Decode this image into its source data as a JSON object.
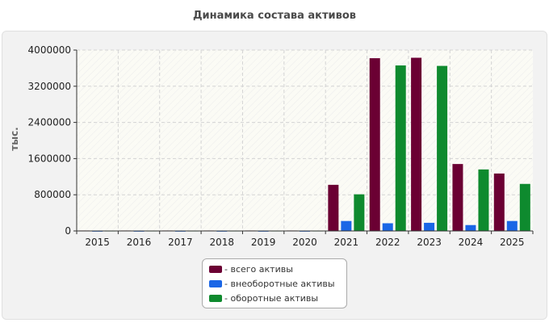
{
  "chart_data": {
    "type": "bar",
    "title": "Динамика состава активов",
    "ylabel": "тыс.",
    "xlabel": "",
    "categories": [
      "2015",
      "2016",
      "2017",
      "2018",
      "2019",
      "2020",
      "2021",
      "2022",
      "2023",
      "2024",
      "2025"
    ],
    "ylim": [
      0,
      4000000
    ],
    "yticks": [
      0,
      800000,
      1600000,
      2400000,
      3200000,
      4000000
    ],
    "ytick_labels": [
      "0",
      "800000",
      "1600000",
      "2400000",
      "3200000",
      "4000000"
    ],
    "grid": true,
    "legend_position": "bottom-center",
    "series": [
      {
        "name": "- всего активы",
        "color": "#6b0033",
        "values": [
          10000,
          10000,
          10000,
          10000,
          10000,
          10000,
          1020000,
          3820000,
          3830000,
          1480000,
          1270000
        ]
      },
      {
        "name": "- внеоборотные активы",
        "color": "#1a66e6",
        "values": [
          3000,
          3000,
          3000,
          3000,
          3000,
          3000,
          220000,
          170000,
          180000,
          130000,
          220000
        ]
      },
      {
        "name": "- оборотные активы",
        "color": "#0e8a2e",
        "values": [
          8000,
          8000,
          8000,
          8000,
          8000,
          8000,
          810000,
          3660000,
          3650000,
          1360000,
          1040000
        ]
      }
    ]
  }
}
